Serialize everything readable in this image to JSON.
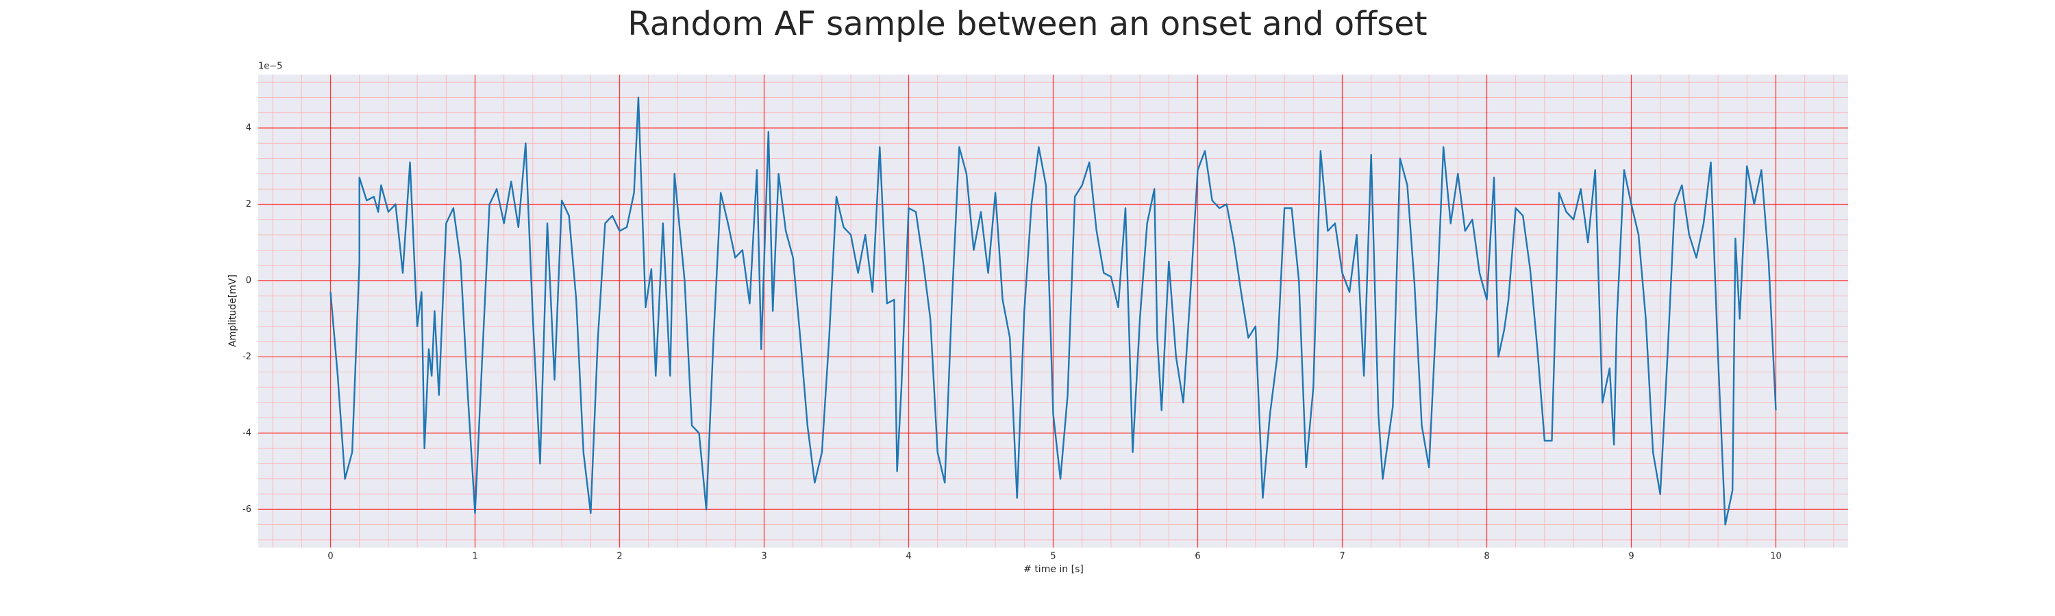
{
  "chart_data": {
    "type": "line",
    "title": "Random AF sample between an onset and offset",
    "xlabel": "# time in [s]",
    "ylabel": "Amplitude[mV]",
    "y_offset_label": "1e−5",
    "color": "#1f77b4",
    "grid": true,
    "grid_color": "#ff0000",
    "minor_grid": true,
    "background": "#eaeaf2",
    "xlim": [
      -0.5,
      10.5
    ],
    "ylim": [
      -7.0,
      5.4
    ],
    "xticks": [
      0,
      1,
      2,
      3,
      4,
      5,
      6,
      7,
      8,
      9,
      10
    ],
    "yticks": [
      -6,
      -4,
      -2,
      0,
      2,
      4
    ],
    "x": [
      0,
      0.05,
      0.1,
      0.15,
      0.2,
      0.2,
      0.25,
      0.3,
      0.33,
      0.35,
      0.4,
      0.45,
      0.5,
      0.55,
      0.6,
      0.63,
      0.65,
      0.68,
      0.7,
      0.72,
      0.75,
      0.8,
      0.85,
      0.9,
      0.95,
      1.0,
      1.05,
      1.1,
      1.15,
      1.2,
      1.25,
      1.3,
      1.35,
      1.4,
      1.45,
      1.5,
      1.55,
      1.6,
      1.65,
      1.7,
      1.75,
      1.8,
      1.85,
      1.9,
      1.95,
      2.0,
      2.05,
      2.1,
      2.13,
      2.18,
      2.22,
      2.25,
      2.3,
      2.35,
      2.38,
      2.45,
      2.5,
      2.55,
      2.6,
      2.65,
      2.7,
      2.75,
      2.8,
      2.85,
      2.9,
      2.95,
      2.98,
      3.03,
      3.06,
      3.1,
      3.15,
      3.2,
      3.25,
      3.3,
      3.35,
      3.4,
      3.45,
      3.5,
      3.55,
      3.6,
      3.65,
      3.7,
      3.75,
      3.8,
      3.85,
      3.9,
      3.92,
      3.95,
      4.0,
      4.05,
      4.1,
      4.15,
      4.2,
      4.25,
      4.3,
      4.35,
      4.4,
      4.45,
      4.5,
      4.55,
      4.6,
      4.65,
      4.7,
      4.75,
      4.8,
      4.85,
      4.9,
      4.95,
      5.0,
      5.05,
      5.1,
      5.15,
      5.2,
      5.25,
      5.3,
      5.35,
      5.4,
      5.45,
      5.5,
      5.55,
      5.6,
      5.65,
      5.7,
      5.72,
      5.75,
      5.8,
      5.85,
      5.9,
      5.95,
      6.0,
      6.05,
      6.1,
      6.15,
      6.2,
      6.25,
      6.3,
      6.35,
      6.4,
      6.45,
      6.5,
      6.55,
      6.6,
      6.65,
      6.7,
      6.75,
      6.8,
      6.85,
      6.9,
      6.95,
      7.0,
      7.05,
      7.1,
      7.15,
      7.2,
      7.25,
      7.28,
      7.35,
      7.4,
      7.45,
      7.5,
      7.55,
      7.6,
      7.65,
      7.7,
      7.75,
      7.8,
      7.85,
      7.9,
      7.95,
      8.0,
      8.05,
      8.08,
      8.12,
      8.15,
      8.2,
      8.25,
      8.3,
      8.35,
      8.4,
      8.45,
      8.5,
      8.55,
      8.6,
      8.65,
      8.7,
      8.75,
      8.8,
      8.85,
      8.88,
      8.9,
      8.95,
      9.0,
      9.05,
      9.1,
      9.15,
      9.2,
      9.25,
      9.3,
      9.35,
      9.4,
      9.45,
      9.5,
      9.55,
      9.6,
      9.65,
      9.7,
      9.72,
      9.75,
      9.8,
      9.85,
      9.9,
      9.95,
      10.0
    ],
    "values": [
      -0.3,
      -2.5,
      -5.2,
      -4.5,
      0.5,
      2.7,
      2.1,
      2.2,
      1.8,
      2.5,
      1.8,
      2.0,
      0.2,
      3.1,
      -1.2,
      -0.3,
      -4.4,
      -1.8,
      -2.5,
      -0.8,
      -3.0,
      1.5,
      1.9,
      0.5,
      -3.0,
      -6.1,
      -2,
      2.0,
      2.4,
      1.5,
      2.6,
      1.4,
      3.6,
      -1.0,
      -4.8,
      1.5,
      -2.6,
      2.1,
      1.7,
      -0.5,
      -4.5,
      -6.1,
      -1.5,
      1.5,
      1.7,
      1.3,
      1.4,
      2.3,
      4.8,
      -0.7,
      0.3,
      -2.5,
      1.5,
      -2.5,
      2.8,
      0,
      -3.8,
      -4,
      -6.0,
      -1.5,
      2.3,
      1.5,
      0.6,
      0.8,
      -0.6,
      2.9,
      -1.8,
      3.9,
      -0.8,
      2.8,
      1.3,
      0.6,
      -1.5,
      -3.8,
      -5.3,
      -4.5,
      -1.5,
      2.2,
      1.4,
      1.2,
      0.2,
      1.2,
      -0.3,
      3.5,
      -0.6,
      -0.5,
      -5.0,
      -2.8,
      1.9,
      1.8,
      0.5,
      -1.0,
      -4.5,
      -5.3,
      -0.5,
      3.5,
      2.8,
      0.8,
      1.8,
      0.2,
      2.3,
      -0.5,
      -1.5,
      -5.7,
      -0.8,
      2.0,
      3.5,
      2.5,
      -3.5,
      -5.2,
      -3.0,
      2.2,
      2.5,
      3.1,
      1.3,
      0.2,
      0.1,
      -0.7,
      1.9,
      -4.5,
      -1.0,
      1.5,
      2.4,
      -1.5,
      -3.4,
      0.5,
      -2.0,
      -3.2,
      -0.3,
      2.9,
      3.4,
      2.1,
      1.9,
      2.0,
      1.0,
      -0.3,
      -1.5,
      -1.2,
      -5.7,
      -3.5,
      -2.0,
      1.9,
      1.9,
      0,
      -4.9,
      -2.8,
      3.4,
      1.3,
      1.5,
      0.2,
      -0.3,
      1.2,
      -2.5,
      3.3,
      -3.5,
      -5.2,
      -3.3,
      3.2,
      2.5,
      -0.1,
      -3.8,
      -4.9,
      -1.0,
      3.5,
      1.5,
      2.8,
      1.3,
      1.6,
      0.2,
      -0.5,
      2.7,
      -2.0,
      -1.3,
      -0.5,
      1.9,
      1.7,
      0.3,
      -1.8,
      -4.2,
      -4.2,
      2.3,
      1.8,
      1.6,
      2.4,
      1.0,
      2.9,
      -3.2,
      -2.3,
      -4.3,
      -1.0,
      2.9,
      2.0,
      1.2,
      -1.0,
      -4.5,
      -5.6,
      -2.0,
      2.0,
      2.5,
      1.2,
      0.6,
      1.5,
      3.1,
      -2.0,
      -6.4,
      -5.5,
      1.1,
      -1.0,
      3.0,
      2.0,
      2.9,
      0.5,
      -3.4
    ]
  }
}
